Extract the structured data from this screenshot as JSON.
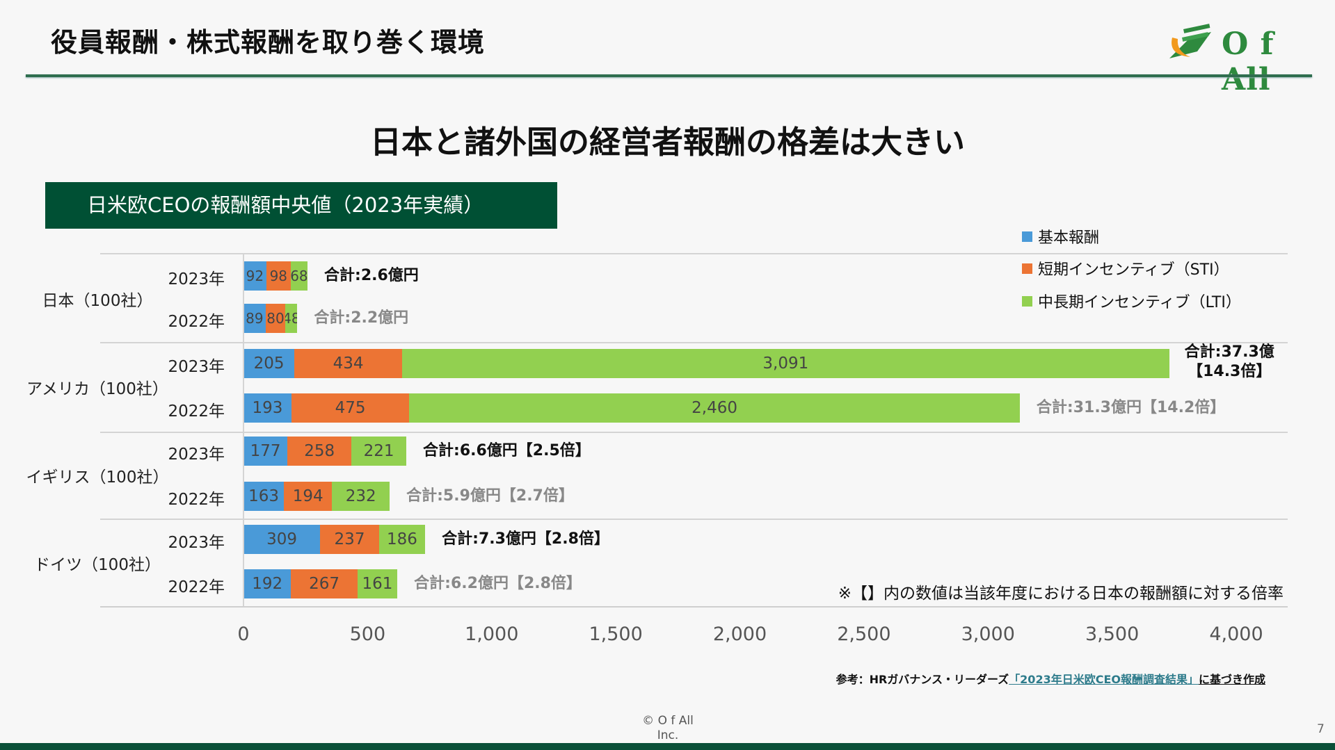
{
  "header": {
    "title": "役員報酬・株式報酬を取り巻く環境",
    "logo_text": "O f All"
  },
  "headline": "日本と諸外国の経営者報酬の格差は大きい",
  "chart_box_title": "日米欧CEOの報酬額中央値（2023年実績）",
  "colors": {
    "base": "#4a9ad8",
    "sti": "#ec7434",
    "lti": "#92d050",
    "brand": "#005034"
  },
  "chart_data": {
    "type": "bar",
    "orientation": "horizontal",
    "stacked": true,
    "xlim": [
      0,
      4000
    ],
    "xticks": [
      "0",
      "500",
      "1,000",
      "1,500",
      "2,000",
      "2,500",
      "3,000",
      "3,500",
      "4,000"
    ],
    "legend_position": "top-right",
    "series_names": [
      "基本報酬",
      "短期インセンティブ（STI）",
      "中長期インセンティブ（LTI）"
    ],
    "groups": [
      {
        "country": "日本（100社）",
        "rows": [
          {
            "year": "2023年",
            "values": [
              92,
              98,
              68
            ],
            "labels": [
              "92",
              "98",
              "68"
            ],
            "total": "合計:2.6億円",
            "highlight": true
          },
          {
            "year": "2022年",
            "values": [
              89,
              80,
              48
            ],
            "labels": [
              "89",
              "80",
              "48"
            ],
            "total": "合計:2.2億円",
            "highlight": false
          }
        ]
      },
      {
        "country": "アメリカ（100社）",
        "rows": [
          {
            "year": "2023年",
            "values": [
              205,
              434,
              3091
            ],
            "labels": [
              "205",
              "434",
              "3,091"
            ],
            "total": "合計:37.3億\n【14.3倍】",
            "highlight": true
          },
          {
            "year": "2022年",
            "values": [
              193,
              475,
              2460
            ],
            "labels": [
              "193",
              "475",
              "2,460"
            ],
            "total": "合計:31.3億円【14.2倍】",
            "highlight": false
          }
        ]
      },
      {
        "country": "イギリス（100社）",
        "rows": [
          {
            "year": "2023年",
            "values": [
              177,
              258,
              221
            ],
            "labels": [
              "177",
              "258",
              "221"
            ],
            "total": "合計:6.6億円【2.5倍】",
            "highlight": true
          },
          {
            "year": "2022年",
            "values": [
              163,
              194,
              232
            ],
            "labels": [
              "163",
              "194",
              "232"
            ],
            "total": "合計:5.9億円【2.7倍】",
            "highlight": false
          }
        ]
      },
      {
        "country": "ドイツ（100社）",
        "rows": [
          {
            "year": "2023年",
            "values": [
              309,
              237,
              186
            ],
            "labels": [
              "309",
              "237",
              "186"
            ],
            "total": "合計:7.3億円【2.8倍】",
            "highlight": true
          },
          {
            "year": "2022年",
            "values": [
              192,
              267,
              161
            ],
            "labels": [
              "192",
              "267",
              "161"
            ],
            "total": "合計:6.2億円【2.8倍】",
            "highlight": false
          }
        ]
      }
    ]
  },
  "note": "※【】内の数値は当該年度における日本の報酬額に対する倍率",
  "source": {
    "prefix": "参考：HRガバナンス・リーダーズ",
    "link": "「2023年日米欧CEO報酬調査結果」",
    "suffix": "に基づき作成"
  },
  "footer": {
    "copyright_1": "© O f All",
    "copyright_2": "Inc.",
    "page_number": "7"
  }
}
